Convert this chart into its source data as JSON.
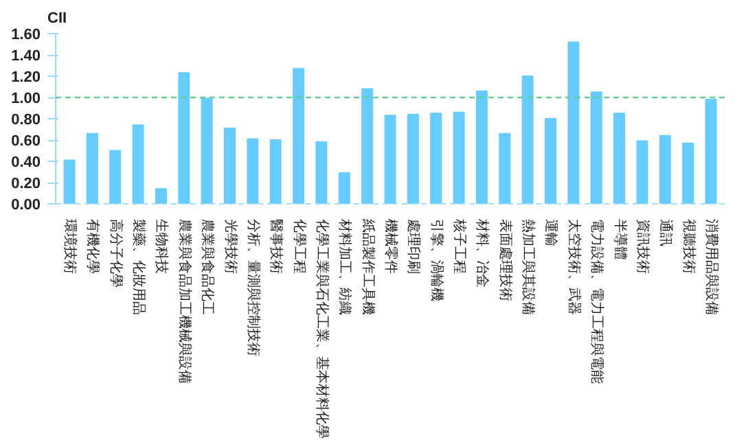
{
  "chart_data": {
    "type": "bar",
    "ylabel": "CII",
    "categories": [
      "環境技術",
      "有機化學",
      "高分子化學",
      "製藥、化妝用品",
      "生物科技",
      "農業與食品加工機械與設備",
      "農業與食品化工",
      "光學技術",
      "分析、量測與控制技術",
      "醫事技術",
      "化學工程",
      "化學工業與石化工業、基本材料化學",
      "材料加工、紡織",
      "紙品製作工具機",
      "機械零件",
      "處理印刷",
      "引擎、渦輪機",
      "核子工程",
      "材料、冶金",
      "表面處理技術",
      "熱加工與其設備",
      "運輸",
      "太空技術、武器",
      "電力設備、電力工程與電能",
      "半導體",
      "資訊技術",
      "通訊",
      "視聽技術",
      "消費用品與設備"
    ],
    "values": [
      0.41,
      0.66,
      0.5,
      0.74,
      0.14,
      1.23,
      0.99,
      0.71,
      0.61,
      0.6,
      1.27,
      0.58,
      0.29,
      1.08,
      0.83,
      0.84,
      0.85,
      0.86,
      1.06,
      0.66,
      1.2,
      0.8,
      1.52,
      1.05,
      0.85,
      0.59,
      0.64,
      0.57,
      0.98
    ],
    "color": "#66ccff",
    "ylim": [
      0,
      1.6
    ],
    "yticks": [
      {
        "value": 0,
        "label": "0.00"
      },
      {
        "value": 0.2,
        "label": "0.20"
      },
      {
        "value": 0.4,
        "label": "0.40"
      },
      {
        "value": 0.6,
        "label": "0.60"
      },
      {
        "value": 0.8,
        "label": "0.80"
      },
      {
        "value": 1.0,
        "label": "1.00"
      },
      {
        "value": 1.2,
        "label": "1.20"
      },
      {
        "value": 1.4,
        "label": "1.40"
      },
      {
        "value": 1.6,
        "label": "1.60"
      }
    ],
    "ref_lines": [
      {
        "axis": "y",
        "value": 1.0,
        "color": "#66cc99",
        "line_style": "dashed"
      }
    ],
    "grid": false
  }
}
